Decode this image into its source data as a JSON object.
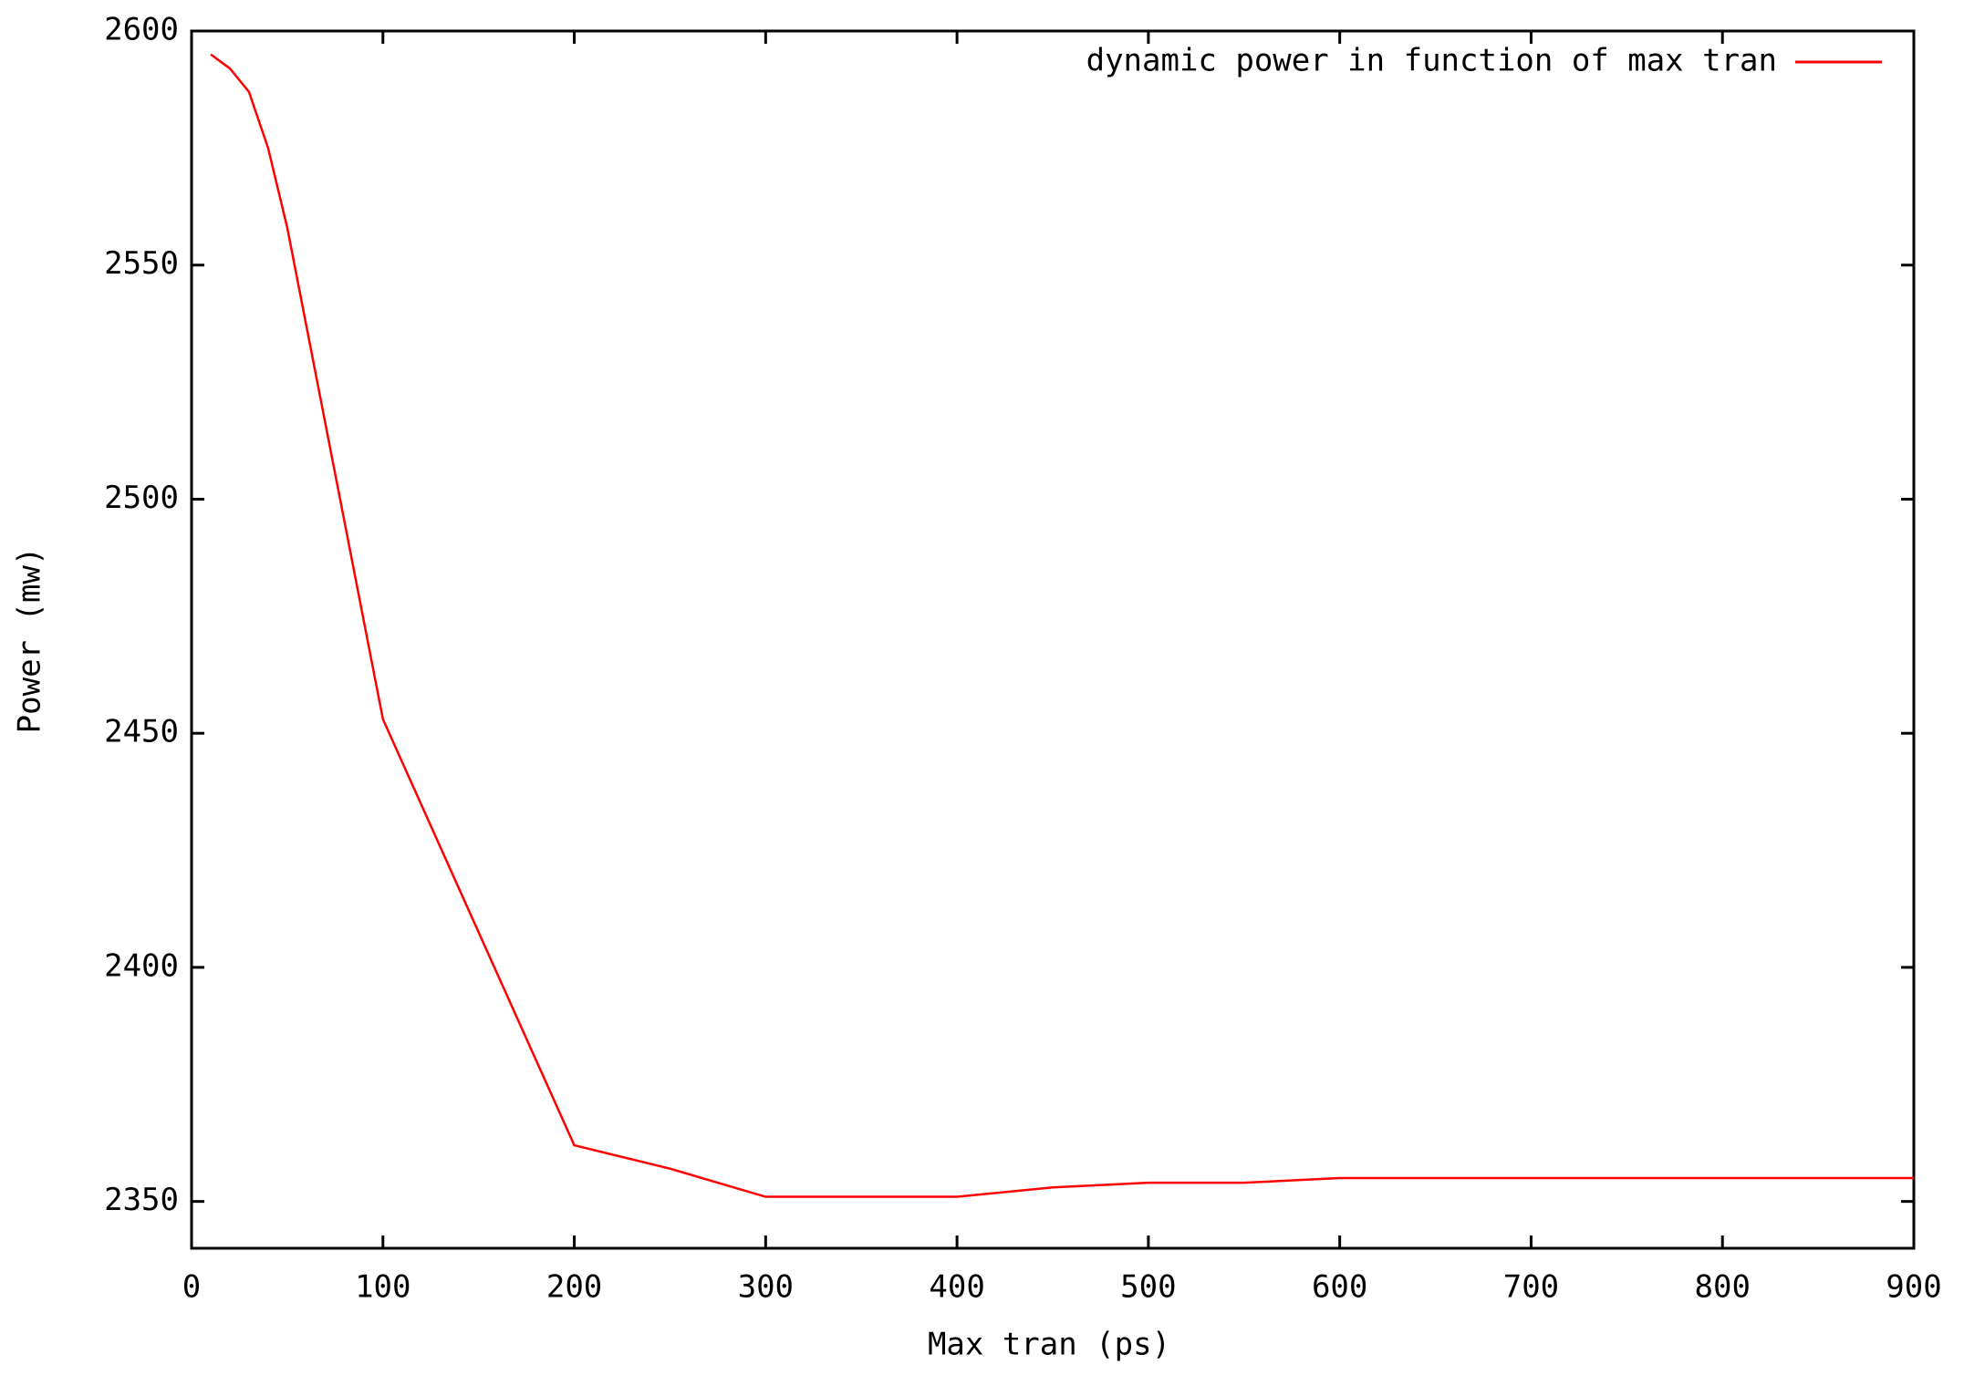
{
  "chart_data": {
    "type": "line",
    "x_label": "Max tran (ps)",
    "y_label": "Power (mw)",
    "x": [
      10,
      20,
      30,
      40,
      50,
      60,
      70,
      80,
      90,
      100,
      200,
      250,
      300,
      350,
      400,
      450,
      500,
      550,
      600,
      700,
      800,
      900
    ],
    "series": [
      {
        "name": "dynamic power in function of max tran",
        "color": "#ff0000",
        "values": [
          2595,
          2592,
          2587,
          2575,
          2558,
          2537,
          2516,
          2495,
          2474,
          2453,
          2362,
          2357,
          2351,
          2351,
          2351,
          2353,
          2354,
          2354,
          2355,
          2355,
          2355,
          2355
        ]
      }
    ],
    "xlim": [
      0,
      900
    ],
    "xticks": [
      0,
      100,
      200,
      300,
      400,
      500,
      600,
      700,
      800,
      900
    ],
    "ylim": [
      2340,
      2600
    ],
    "yticks": [
      2350,
      2400,
      2450,
      2500,
      2550,
      2600
    ],
    "legend": "top right",
    "grid": false
  }
}
